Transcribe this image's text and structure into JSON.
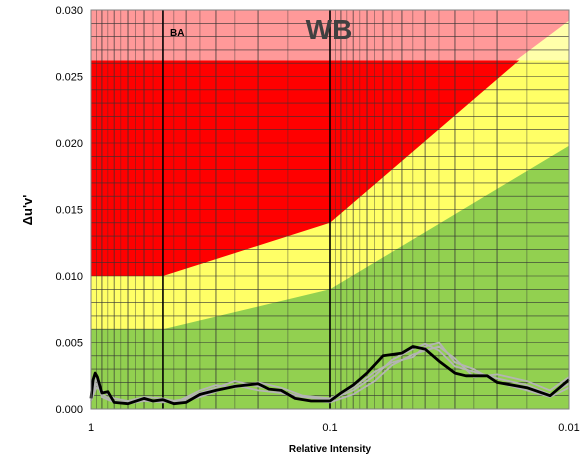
{
  "chart_data": {
    "type": "area",
    "title": "WB",
    "xlabel": "Relative Intensity",
    "ylabel": "Δu'v'",
    "x_scale": "log",
    "x_reversed": true,
    "xlim": [
      1,
      0.01
    ],
    "ylim": [
      0,
      0.03
    ],
    "x_tick_labels": [
      "1",
      "0.1",
      "0.01"
    ],
    "y_tick_labels": [
      "0.000",
      "0.005",
      "0.010",
      "0.015",
      "0.020",
      "0.025",
      "0.030"
    ],
    "y_ticks": [
      0,
      0.005,
      0.01,
      0.015,
      0.02,
      0.025,
      0.03
    ],
    "grid": true,
    "annotation": "BA",
    "colors": {
      "green": "#92d050",
      "yellow": "#ffff66",
      "red": "#ff0000",
      "pink": "#ff9999",
      "pale_yellow": "#ffffaa",
      "grid_minor": "#333333",
      "grid_major": "#000000",
      "measured_thin": "#b4b4b4",
      "measured_thick": "#000000",
      "annotation": "#c8c8c8",
      "title": "#404040"
    },
    "bands": [
      {
        "name": "green",
        "x": [
          1,
          0.5,
          0.1,
          0.01
        ],
        "y": [
          0.006,
          0.006,
          0.009,
          0.0198
        ]
      },
      {
        "name": "yellow",
        "x": [
          1,
          0.5,
          0.1,
          0.0167,
          0.01
        ],
        "y": [
          0.01,
          0.01,
          0.014,
          0.026,
          0.0292
        ]
      },
      {
        "name": "red",
        "x": [
          1,
          0.01
        ],
        "y": [
          0.0262,
          0.0262
        ]
      }
    ],
    "lines": [
      {
        "style": "thick",
        "x": [
          1,
          0.98,
          0.96,
          0.94,
          0.9,
          0.85,
          0.8,
          0.7,
          0.6,
          0.55,
          0.5,
          0.45,
          0.4,
          0.35,
          0.3,
          0.25,
          0.2,
          0.18,
          0.16,
          0.14,
          0.12,
          0.1,
          0.09,
          0.08,
          0.07,
          0.06,
          0.05,
          0.045,
          0.04,
          0.035,
          0.03,
          0.027,
          0.025,
          0.022,
          0.02,
          0.015,
          0.012,
          0.01
        ],
        "y": [
          0.0008,
          0.0022,
          0.0027,
          0.0024,
          0.0012,
          0.0013,
          0.0005,
          0.0004,
          0.0008,
          0.0006,
          0.0007,
          0.0004,
          0.0005,
          0.0011,
          0.0014,
          0.0017,
          0.0019,
          0.0015,
          0.0014,
          0.0008,
          0.0006,
          0.0006,
          0.0012,
          0.0018,
          0.0027,
          0.004,
          0.0042,
          0.0047,
          0.0045,
          0.0036,
          0.0027,
          0.0025,
          0.0025,
          0.0025,
          0.002,
          0.0016,
          0.001,
          0.0022
        ]
      },
      {
        "style": "thin",
        "x": [
          1,
          0.95,
          0.9,
          0.8,
          0.7,
          0.6,
          0.5,
          0.42,
          0.35,
          0.3,
          0.25,
          0.2,
          0.16,
          0.13,
          0.1,
          0.08,
          0.065,
          0.055,
          0.045,
          0.04,
          0.035,
          0.03,
          0.025,
          0.02,
          0.015,
          0.012,
          0.01
        ],
        "y": [
          0.0009,
          0.0019,
          0.0011,
          0.0006,
          0.0005,
          0.0007,
          0.0006,
          0.0006,
          0.0012,
          0.0016,
          0.0021,
          0.0017,
          0.0013,
          0.0009,
          0.0007,
          0.0014,
          0.0025,
          0.0037,
          0.0045,
          0.0049,
          0.0044,
          0.0032,
          0.0028,
          0.0023,
          0.0018,
          0.0011,
          0.0019
        ]
      },
      {
        "style": "thin",
        "x": [
          1,
          0.95,
          0.9,
          0.8,
          0.7,
          0.6,
          0.5,
          0.42,
          0.35,
          0.3,
          0.25,
          0.2,
          0.16,
          0.13,
          0.1,
          0.08,
          0.065,
          0.055,
          0.045,
          0.04,
          0.035,
          0.03,
          0.025,
          0.02,
          0.015,
          0.012,
          0.01
        ],
        "y": [
          0.0006,
          0.0016,
          0.0014,
          0.0008,
          0.0006,
          0.0009,
          0.0008,
          0.0005,
          0.0009,
          0.0013,
          0.0018,
          0.0014,
          0.0012,
          0.0007,
          0.0005,
          0.0011,
          0.0021,
          0.0033,
          0.0041,
          0.0044,
          0.0047,
          0.0038,
          0.0024,
          0.0026,
          0.0021,
          0.0014,
          0.0024
        ]
      },
      {
        "style": "thin",
        "x": [
          1,
          0.95,
          0.9,
          0.8,
          0.7,
          0.6,
          0.5,
          0.42,
          0.35,
          0.3,
          0.25,
          0.2,
          0.16,
          0.13,
          0.1,
          0.08,
          0.065,
          0.055,
          0.045,
          0.04,
          0.035,
          0.03,
          0.025,
          0.02,
          0.015,
          0.012,
          0.01
        ],
        "y": [
          0.0011,
          0.0023,
          0.0009,
          0.0005,
          0.0004,
          0.0006,
          0.0005,
          0.0007,
          0.0014,
          0.0018,
          0.0016,
          0.002,
          0.0016,
          0.001,
          0.0008,
          0.0016,
          0.0028,
          0.0035,
          0.0039,
          0.0047,
          0.005,
          0.0035,
          0.003,
          0.002,
          0.0014,
          0.0009,
          0.0016
        ]
      }
    ]
  }
}
